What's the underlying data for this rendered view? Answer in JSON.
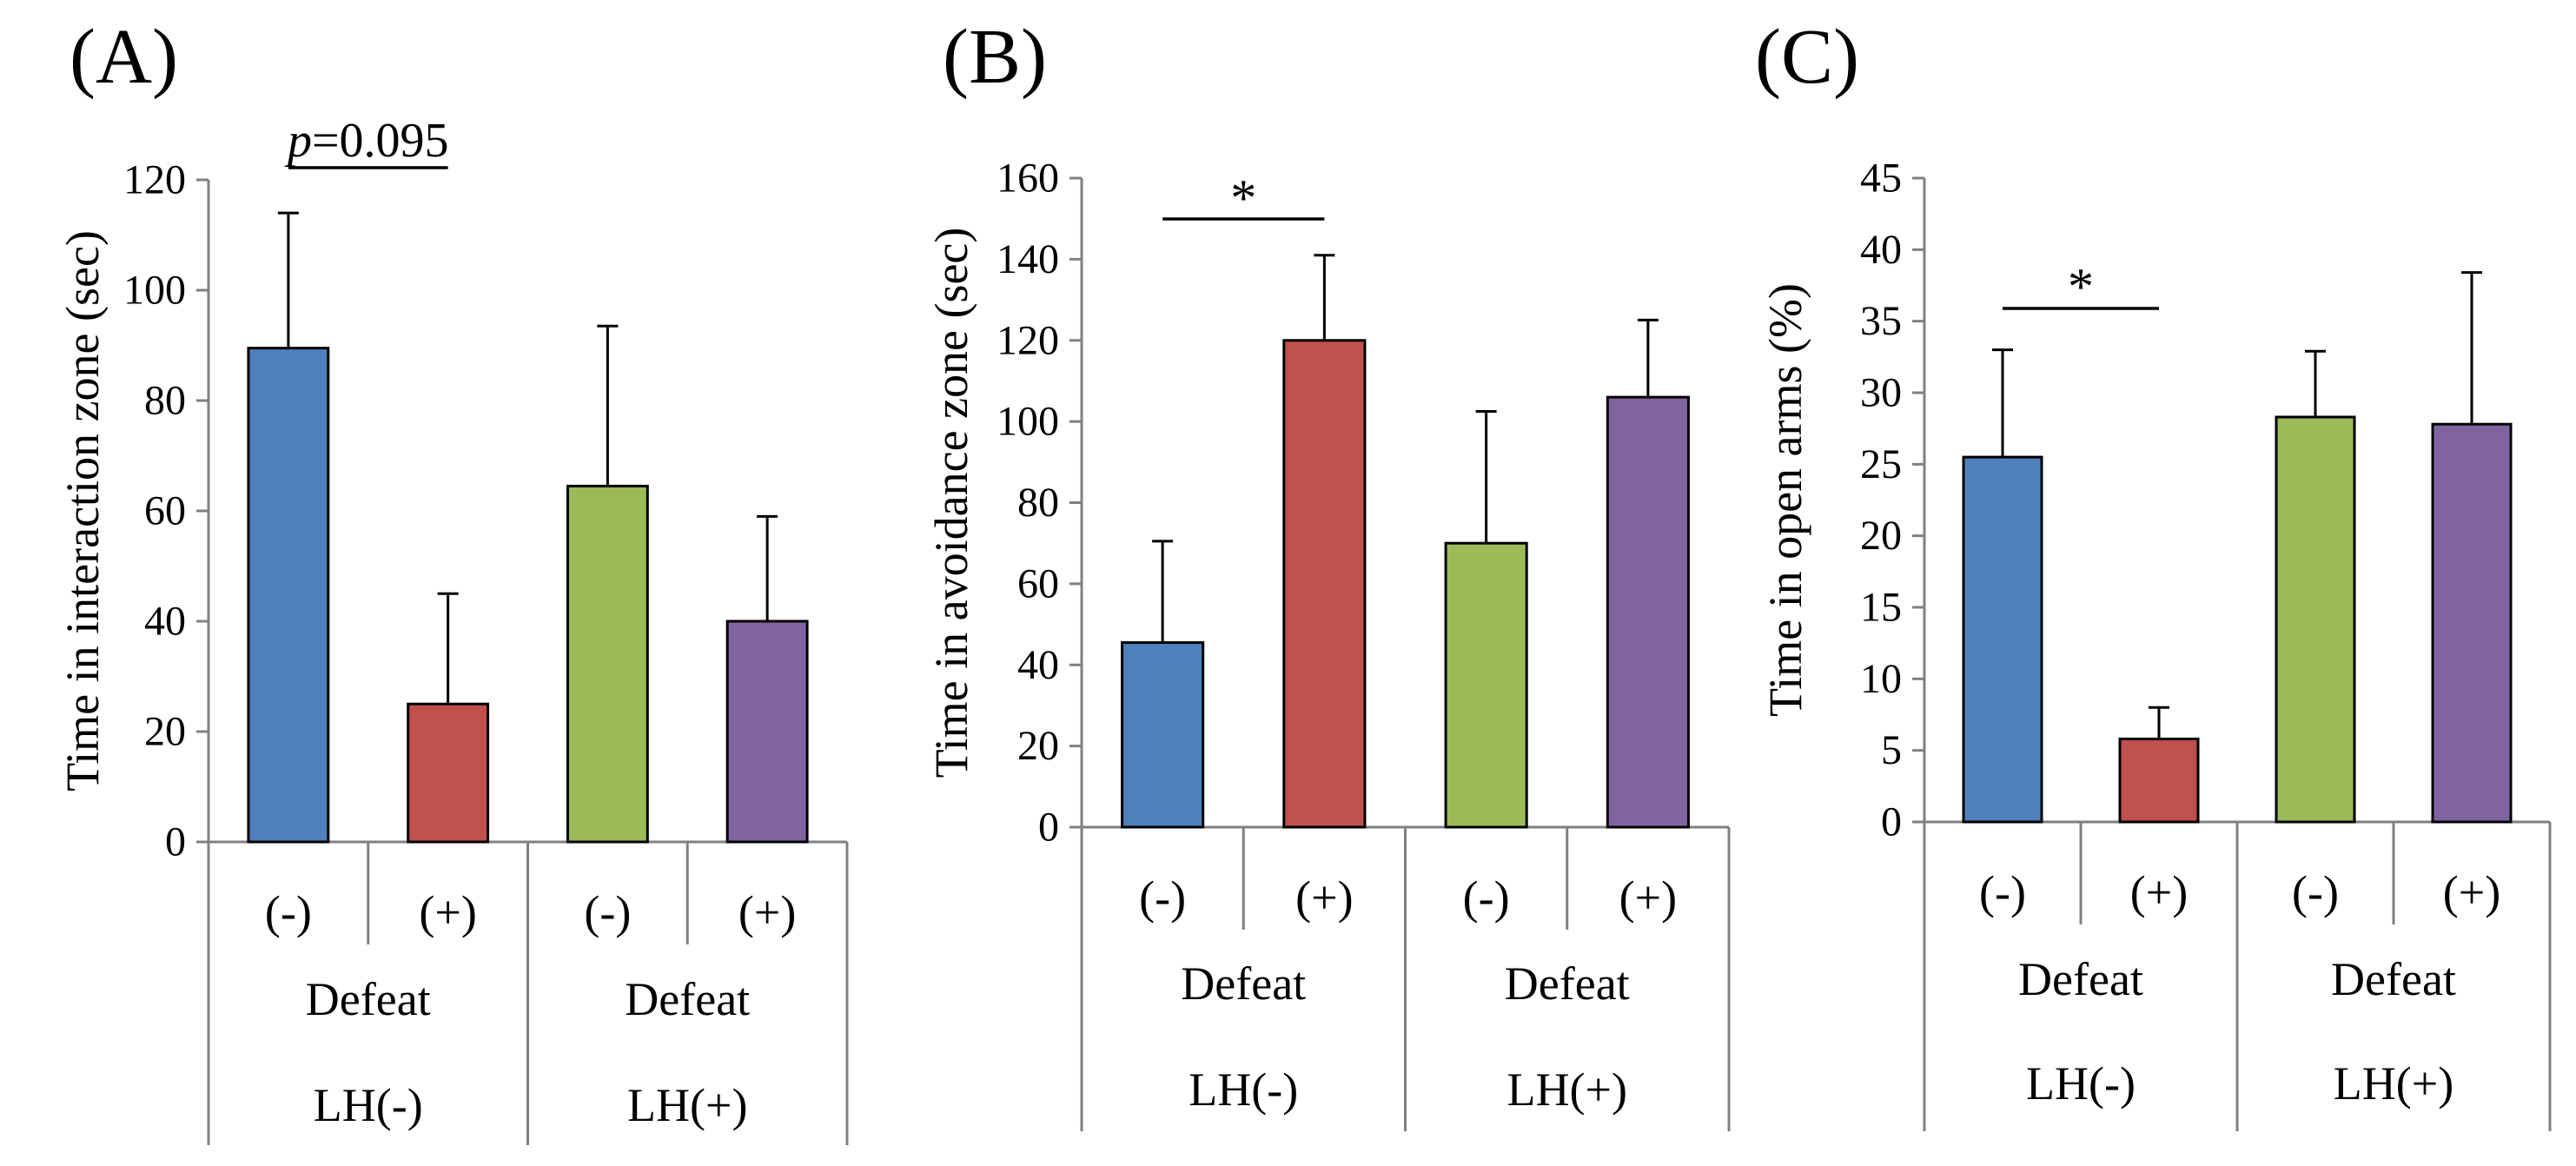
{
  "chart_data": [
    {
      "type": "bar",
      "panel_label": "(A)",
      "ylabel": "Time in interaction zone (sec)",
      "ylim": [
        0,
        120
      ],
      "yticks": [
        0,
        20,
        40,
        60,
        80,
        100,
        120
      ],
      "categories": [
        "(-)",
        "(+)",
        "(-)",
        "(+)"
      ],
      "groups": [
        "Defeat",
        "Defeat"
      ],
      "subgroups": [
        "LH(-)",
        "LH(+)"
      ],
      "values": [
        89.5,
        25,
        64.5,
        40
      ],
      "errors": [
        24.5,
        20,
        29,
        19
      ],
      "colors": [
        "#4f81bd",
        "#c0504d",
        "#9bbb59",
        "#8064a2"
      ],
      "significance": {
        "from": 0,
        "to": 1,
        "label_prefix": "p",
        "label_value": "=0.095"
      }
    },
    {
      "type": "bar",
      "panel_label": "(B)",
      "ylabel": "Time in avoidance zone (sec)",
      "ylim": [
        0,
        160
      ],
      "yticks": [
        0,
        20,
        40,
        60,
        80,
        100,
        120,
        140,
        160
      ],
      "categories": [
        "(-)",
        "(+)",
        "(-)",
        "(+)"
      ],
      "groups": [
        "Defeat",
        "Defeat"
      ],
      "subgroups": [
        "LH(-)",
        "LH(+)"
      ],
      "values": [
        45.5,
        120,
        70,
        106
      ],
      "errors": [
        25,
        21,
        32.5,
        19
      ],
      "colors": [
        "#4f81bd",
        "#c0504d",
        "#9bbb59",
        "#8064a2"
      ],
      "significance": {
        "from": 0,
        "to": 1,
        "label_value": "*"
      }
    },
    {
      "type": "bar",
      "panel_label": "(C)",
      "ylabel": "Time in open arms (%)",
      "ylim": [
        0,
        45
      ],
      "yticks": [
        0,
        5,
        10,
        15,
        20,
        25,
        30,
        35,
        40,
        45
      ],
      "categories": [
        "(-)",
        "(+)",
        "(-)",
        "(+)"
      ],
      "groups": [
        "Defeat",
        "Defeat"
      ],
      "subgroups": [
        "LH(-)",
        "LH(+)"
      ],
      "values": [
        25.5,
        5.8,
        28.3,
        27.8
      ],
      "errors": [
        7.5,
        2.2,
        4.6,
        10.6
      ],
      "colors": [
        "#4f81bd",
        "#c0504d",
        "#9bbb59",
        "#8064a2"
      ],
      "significance": {
        "from": 0,
        "to": 1,
        "label_value": "*"
      }
    }
  ]
}
